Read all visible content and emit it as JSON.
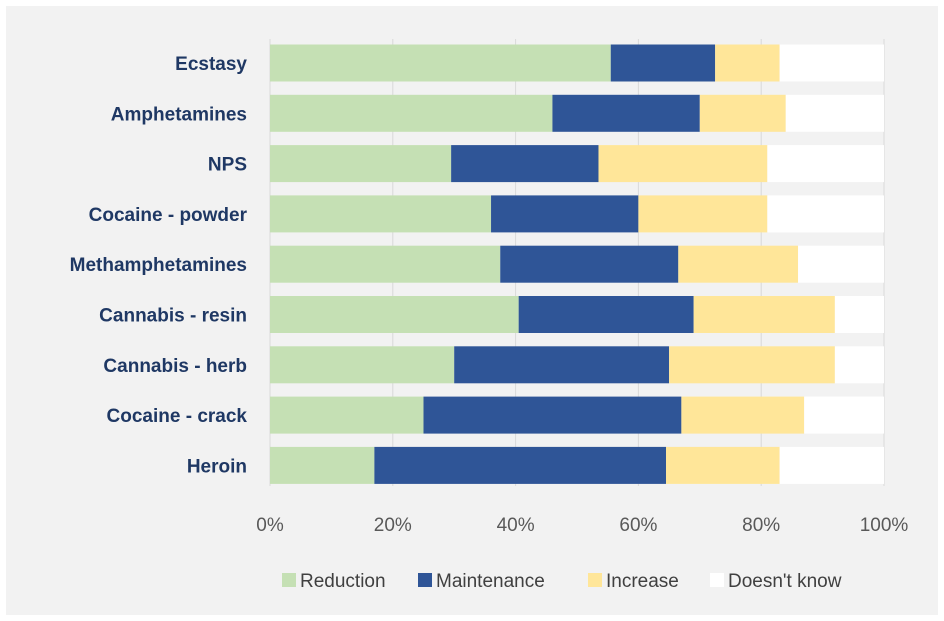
{
  "chart_data": {
    "type": "bar",
    "orientation": "horizontal",
    "stacked": true,
    "categories": [
      "Ecstasy",
      "Amphetamines",
      "NPS",
      "Cocaine - powder",
      "Methamphetamines",
      "Cannabis - resin",
      "Cannabis - herb",
      "Cocaine - crack",
      "Heroin"
    ],
    "series": [
      {
        "name": "Reduction",
        "color": "#c5e0b4",
        "values": [
          55.5,
          46,
          29.5,
          36,
          37.5,
          40.5,
          30,
          25,
          17
        ]
      },
      {
        "name": "Maintenance",
        "color": "#2f5597",
        "values": [
          17,
          24,
          24,
          24,
          29,
          28.5,
          35,
          42,
          47.5
        ]
      },
      {
        "name": "Increase",
        "color": "#ffe699",
        "values": [
          10.5,
          14,
          27.5,
          21,
          19.5,
          23,
          27,
          20,
          18.5
        ]
      },
      {
        "name": "Doesn't know",
        "color": "#ffffff",
        "values": [
          17,
          16,
          19,
          19,
          14,
          8,
          8,
          13,
          17
        ]
      }
    ],
    "xlim": [
      0,
      100
    ],
    "xticks": [
      "0%",
      "20%",
      "40%",
      "60%",
      "80%",
      "100%"
    ],
    "grid": true,
    "legend_position": "bottom",
    "title": "",
    "xlabel": "",
    "ylabel": ""
  }
}
